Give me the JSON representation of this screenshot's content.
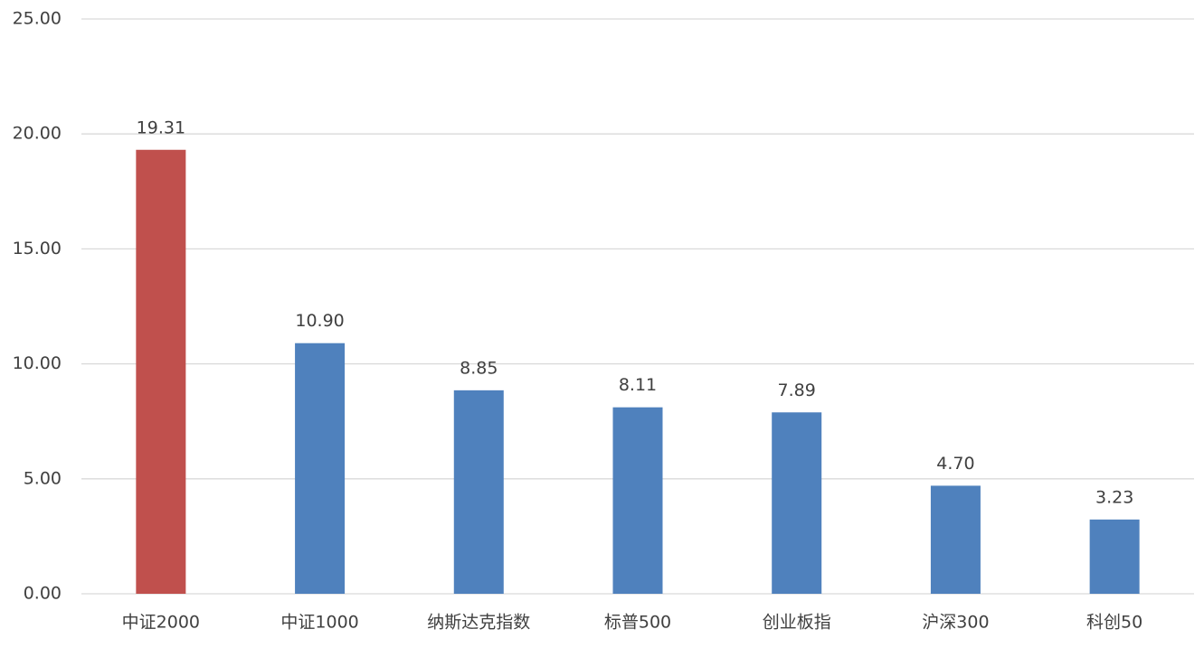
{
  "chart_data": {
    "type": "bar",
    "categories": [
      "中证2000",
      "中证1000",
      "纳斯达克指数",
      "标普500",
      "创业板指",
      "沪深300",
      "科创50"
    ],
    "values": [
      19.31,
      10.9,
      8.85,
      8.11,
      7.89,
      4.7,
      3.23
    ],
    "value_labels": [
      "19.31",
      "10.90",
      "8.85",
      "8.11",
      "7.89",
      "4.70",
      "3.23"
    ],
    "colors": [
      "#c0504d",
      "#4f81bd",
      "#4f81bd",
      "#4f81bd",
      "#4f81bd",
      "#4f81bd",
      "#4f81bd"
    ],
    "ylim": [
      0,
      25
    ],
    "yticks": [
      {
        "value": 0,
        "label": "0.00"
      },
      {
        "value": 5,
        "label": "5.00"
      },
      {
        "value": 10,
        "label": "10.00"
      },
      {
        "value": 15,
        "label": "15.00"
      },
      {
        "value": 20,
        "label": "20.00"
      },
      {
        "value": 25,
        "label": "25.00"
      }
    ],
    "grid": true
  }
}
